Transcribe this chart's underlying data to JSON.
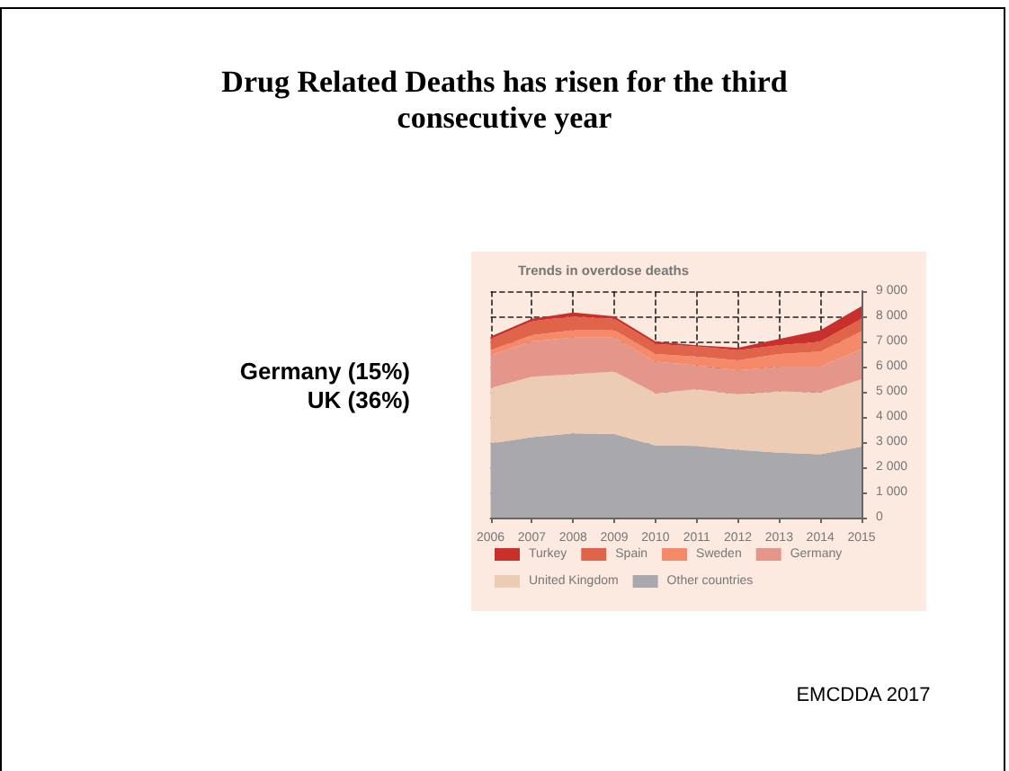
{
  "chart_data": {
    "type": "area",
    "title": "Drug Related Deaths has risen for the third consecutive year",
    "subtitle": "Trends in overdose deaths",
    "annotations": [
      "Germany (15%)",
      "UK (36%)",
      "EMCDDA 2017"
    ],
    "x": [
      2006,
      2007,
      2008,
      2009,
      2010,
      2011,
      2012,
      2013,
      2014,
      2015
    ],
    "stacked": true,
    "series": [
      {
        "name": "Other countries",
        "color": "#a9a9ad",
        "values": [
          2950,
          3200,
          3350,
          3320,
          2870,
          2850,
          2700,
          2580,
          2520,
          2820
        ]
      },
      {
        "name": "United Kingdom",
        "color": "#ecccb5",
        "values": [
          2200,
          2400,
          2350,
          2480,
          2080,
          2250,
          2200,
          2440,
          2450,
          2680
        ]
      },
      {
        "name": "Germany",
        "color": "#e4968a",
        "values": [
          1300,
          1400,
          1450,
          1350,
          1250,
          950,
          950,
          980,
          1030,
          1200
        ]
      },
      {
        "name": "Sweden",
        "color": "#f58a6a",
        "values": [
          200,
          250,
          300,
          300,
          300,
          350,
          400,
          500,
          600,
          700
        ]
      },
      {
        "name": "Spain",
        "color": "#e0644a",
        "values": [
          450,
          550,
          550,
          450,
          400,
          400,
          400,
          350,
          400,
          500
        ]
      },
      {
        "name": "Turkey",
        "color": "#c9302c",
        "values": [
          100,
          100,
          150,
          100,
          100,
          50,
          100,
          250,
          450,
          500
        ]
      }
    ],
    "ylim": [
      0,
      9000
    ],
    "yticks": [
      0,
      {
        "value": 1000,
        "label": "1 000"
      },
      {
        "value": 2000,
        "label": "2 000"
      },
      {
        "value": 3000,
        "label": "3 000"
      },
      {
        "value": 4000,
        "label": "4 000"
      },
      {
        "value": 5000,
        "label": "5 000"
      },
      {
        "value": 6000,
        "label": "6 000"
      },
      {
        "value": 7000,
        "label": "7 000"
      },
      {
        "value": 8000,
        "label": "8 000"
      },
      {
        "value": 9000,
        "label": "9 000"
      }
    ],
    "grid": true,
    "legend": "bottom left"
  }
}
